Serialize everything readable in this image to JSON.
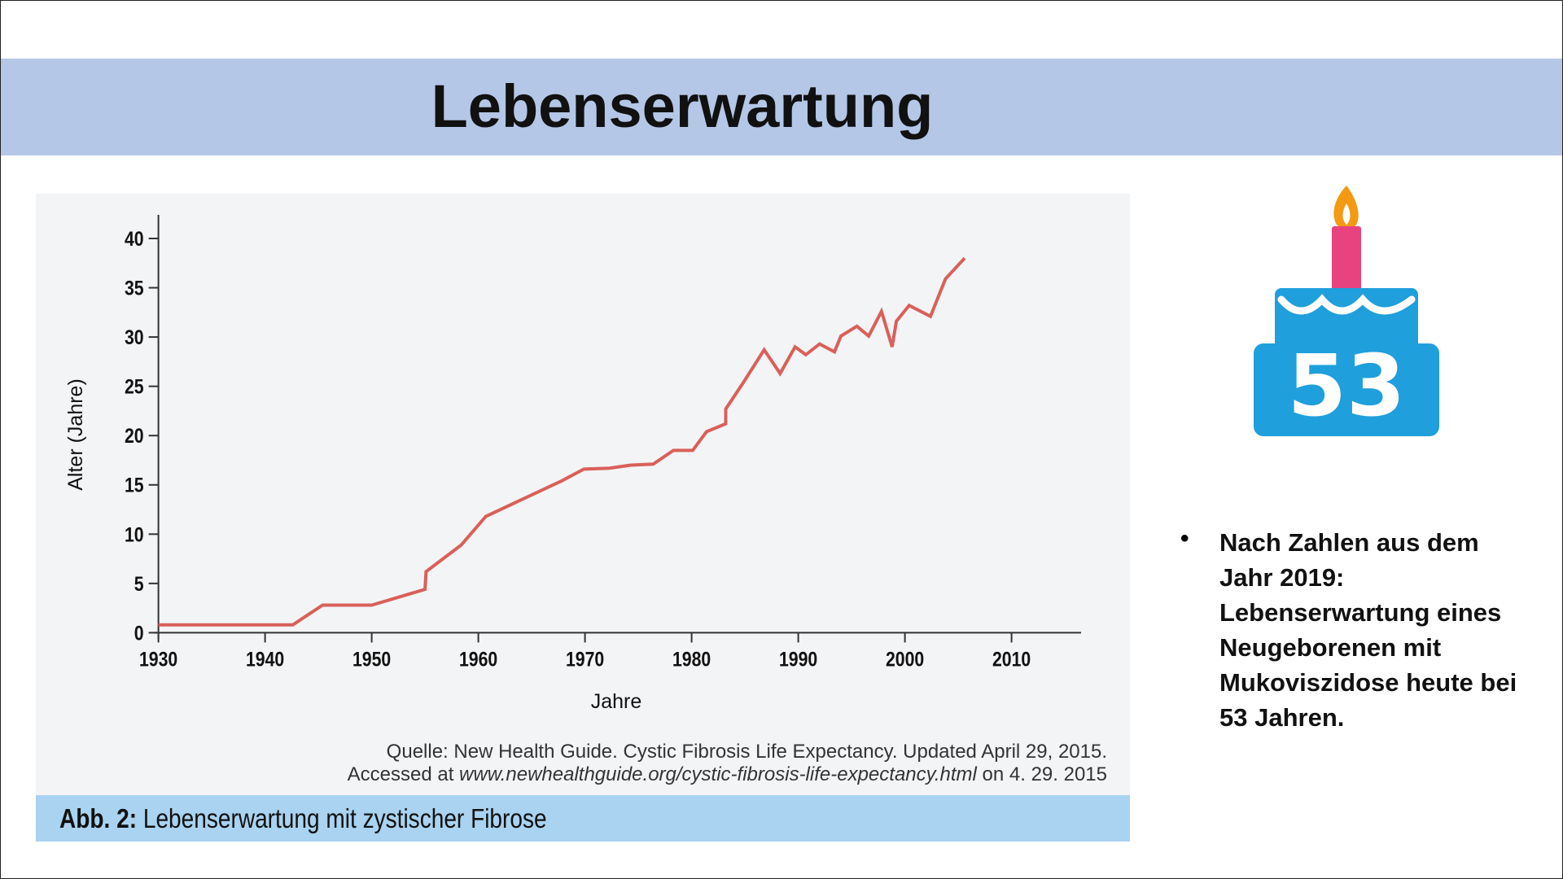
{
  "slide": {
    "title": "Lebenserwartung",
    "bullet": "Nach Zahlen aus dem Jahr 2019: Lebenserwartung eines Neugeborenen mit Mukoviszidose heute bei 53 Jahren.",
    "cake_icon": {
      "name": "birthday-cake-icon",
      "number": "53",
      "colors": {
        "cake": "#1f9fdc",
        "candle": "#e8437e",
        "flame": "#f39a12"
      }
    }
  },
  "figure": {
    "source_line1": "Quelle: New Health Guide. Cystic Fibrosis Life Expectancy. Updated April 29, 2015.",
    "source_line2_prefix": "Accessed at ",
    "source_line2_url": "www.newhealthguide.org/cystic-fibrosis-life-expectancy.html",
    "source_line2_suffix": " on 4. 29. 2015",
    "caption_label": "Abb. 2:",
    "caption_text": " Lebenserwartung mit zystischer Fibrose"
  },
  "chart_data": {
    "type": "line",
    "xlabel": "Jahre",
    "ylabel": "Alter (Jahre)",
    "xlim": [
      1930,
      2016
    ],
    "ylim": [
      0,
      42
    ],
    "xticks": [
      1930,
      1940,
      1950,
      1960,
      1970,
      1980,
      1990,
      2000,
      2010
    ],
    "yticks": [
      0,
      5,
      10,
      15,
      20,
      25,
      30,
      35,
      40
    ],
    "grid": false,
    "line_color": "#d9605a",
    "x": [
      1930,
      1942.6,
      1945.4,
      1950,
      1955,
      1955.1,
      1958.4,
      1960.7,
      1967.8,
      1969.9,
      1972.3,
      1974.3,
      1976.4,
      1978.3,
      1980.1,
      1981.4,
      1983.2,
      1983.2,
      1984.8,
      1986.8,
      1988.3,
      1989.7,
      1990.7,
      1992.0,
      1993.4,
      1994.0,
      1995.5,
      1996.6,
      1997.8,
      1998.8,
      1999.2,
      2000.4,
      2002.4,
      2003.8,
      2005.6
    ],
    "y": [
      0.8,
      0.8,
      2.8,
      2.8,
      4.4,
      6.2,
      8.9,
      11.8,
      15.4,
      16.6,
      16.7,
      17.0,
      17.1,
      18.5,
      18.5,
      20.4,
      21.2,
      22.7,
      25.3,
      28.7,
      26.3,
      29.0,
      28.2,
      29.3,
      28.5,
      30.1,
      31.1,
      30.1,
      32.6,
      29.0,
      31.6,
      33.2,
      32.1,
      35.9,
      38.0
    ]
  }
}
